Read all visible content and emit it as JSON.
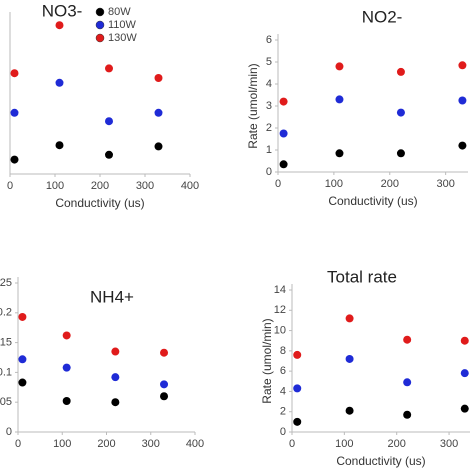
{
  "chart_data": [
    {
      "type": "scatter",
      "title": "NO3-",
      "legend": "top-center",
      "x": [
        10,
        110,
        220,
        330
      ],
      "xlim": [
        0,
        400
      ],
      "xticks": [
        0,
        100,
        200,
        300,
        400
      ],
      "ylim": [
        0,
        6.5
      ],
      "xlabel": "Conductivity (us)",
      "series": [
        {
          "name": "80W",
          "color": "#000000",
          "values": [
            0.6,
            1.2,
            0.8,
            1.15
          ]
        },
        {
          "name": "110W",
          "color": "#1f2bd6",
          "values": [
            2.55,
            3.8,
            2.2,
            2.55
          ]
        },
        {
          "name": "130W",
          "color": "#e01b1b",
          "values": [
            4.2,
            6.2,
            4.4,
            4.0
          ]
        }
      ]
    },
    {
      "type": "scatter",
      "title": "NO2-",
      "x": [
        10,
        110,
        220,
        330
      ],
      "xlim": [
        0,
        340
      ],
      "xticks": [
        0,
        100,
        200,
        300
      ],
      "ylim": [
        0,
        6
      ],
      "yticks": [
        0,
        1,
        2,
        3,
        4,
        5,
        6
      ],
      "xlabel": "Conductivity (us)",
      "ylabel": "Rate (umol/min)",
      "series": [
        {
          "name": "80W",
          "color": "#000000",
          "values": [
            0.35,
            0.85,
            0.85,
            1.2
          ]
        },
        {
          "name": "110W",
          "color": "#1f2bd6",
          "values": [
            1.75,
            3.3,
            2.7,
            3.25
          ]
        },
        {
          "name": "130W",
          "color": "#e01b1b",
          "values": [
            3.2,
            4.8,
            4.55,
            4.85
          ]
        }
      ]
    },
    {
      "type": "scatter",
      "title": "NH4+",
      "x": [
        10,
        110,
        220,
        330
      ],
      "xlim": [
        0,
        400
      ],
      "xticks": [
        0,
        100,
        200,
        300,
        400
      ],
      "ylim": [
        0,
        0.25
      ],
      "yticks": [
        0,
        0.05,
        0.1,
        0.15,
        0.2,
        0.25
      ],
      "series": [
        {
          "name": "80W",
          "color": "#000000",
          "values": [
            0.083,
            0.052,
            0.05,
            0.06
          ]
        },
        {
          "name": "110W",
          "color": "#1f2bd6",
          "values": [
            0.122,
            0.108,
            0.092,
            0.08
          ]
        },
        {
          "name": "130W",
          "color": "#e01b1b",
          "values": [
            0.193,
            0.162,
            0.135,
            0.133
          ]
        }
      ]
    },
    {
      "type": "scatter",
      "title": "Total rate",
      "x": [
        10,
        110,
        220,
        330
      ],
      "xlim": [
        0,
        340
      ],
      "xticks": [
        0,
        100,
        200,
        300
      ],
      "ylim": [
        0,
        14
      ],
      "yticks": [
        0,
        2,
        4,
        6,
        8,
        10,
        12,
        14
      ],
      "xlabel": "Conductivity (us)",
      "ylabel": "Rate (umol/min)",
      "series": [
        {
          "name": "80W",
          "color": "#000000",
          "values": [
            1.0,
            2.1,
            1.7,
            2.3
          ]
        },
        {
          "name": "110W",
          "color": "#1f2bd6",
          "values": [
            4.3,
            7.2,
            4.9,
            5.8
          ]
        },
        {
          "name": "130W",
          "color": "#e01b1b",
          "values": [
            7.6,
            11.2,
            9.1,
            9.0
          ]
        }
      ]
    }
  ]
}
